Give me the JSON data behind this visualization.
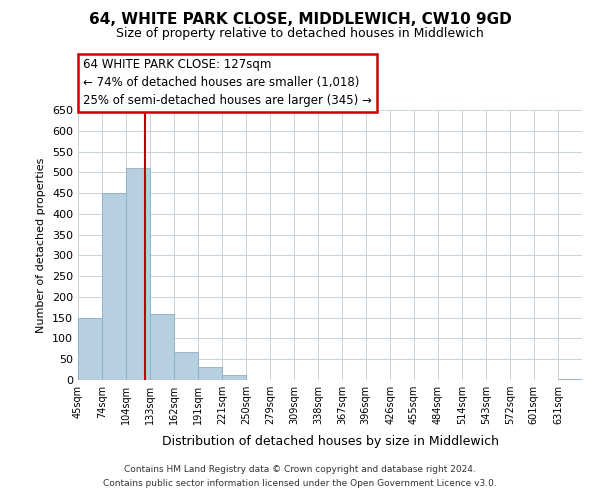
{
  "title": "64, WHITE PARK CLOSE, MIDDLEWICH, CW10 9GD",
  "subtitle": "Size of property relative to detached houses in Middlewich",
  "xlabel": "Distribution of detached houses by size in Middlewich",
  "ylabel": "Number of detached properties",
  "bar_color": "#b8cfe0",
  "bar_edge_color": "#8aaec8",
  "marker_line_color": "#bb0000",
  "marker_value": 127,
  "categories": [
    "45sqm",
    "74sqm",
    "104sqm",
    "133sqm",
    "162sqm",
    "191sqm",
    "221sqm",
    "250sqm",
    "279sqm",
    "309sqm",
    "338sqm",
    "367sqm",
    "396sqm",
    "426sqm",
    "455sqm",
    "484sqm",
    "514sqm",
    "543sqm",
    "572sqm",
    "601sqm",
    "631sqm"
  ],
  "bin_edges": [
    45,
    74,
    104,
    133,
    162,
    191,
    221,
    250,
    279,
    309,
    338,
    367,
    396,
    426,
    455,
    484,
    514,
    543,
    572,
    601,
    631,
    660
  ],
  "values": [
    150,
    450,
    510,
    160,
    67,
    32,
    12,
    0,
    0,
    0,
    0,
    0,
    0,
    0,
    0,
    0,
    0,
    0,
    0,
    0,
    3
  ],
  "ylim": [
    0,
    650
  ],
  "yticks": [
    0,
    50,
    100,
    150,
    200,
    250,
    300,
    350,
    400,
    450,
    500,
    550,
    600,
    650
  ],
  "annotation_title": "64 WHITE PARK CLOSE: 127sqm",
  "annotation_line1": "← 74% of detached houses are smaller (1,018)",
  "annotation_line2": "25% of semi-detached houses are larger (345) →",
  "annotation_box_color": "#ffffff",
  "annotation_box_edge": "#cc0000",
  "footer_line1": "Contains HM Land Registry data © Crown copyright and database right 2024.",
  "footer_line2": "Contains public sector information licensed under the Open Government Licence v3.0.",
  "background_color": "#ffffff",
  "grid_color": "#c8d4dc"
}
